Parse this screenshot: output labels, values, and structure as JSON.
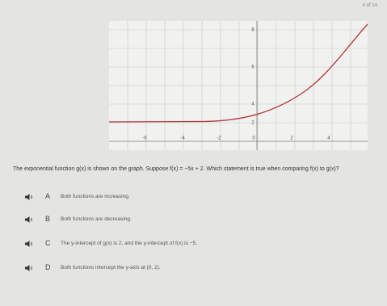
{
  "header": {
    "progress": "4 of 14"
  },
  "graph": {
    "x_labels": [
      "-6",
      "-4",
      "-2",
      "0",
      "2",
      "4"
    ],
    "y_labels": [
      "8",
      "6",
      "4",
      "2"
    ]
  },
  "question": {
    "text": "The exponential function g(x) is shown on the graph. Suppose f(x) = −5x + 2. Which statement is true when comparing f(x) to g(x)?"
  },
  "options": [
    {
      "letter": "A",
      "text": "Both functions are increasing."
    },
    {
      "letter": "B",
      "text": "Both functions are decreasing."
    },
    {
      "letter": "C",
      "text": "The y-intercept of g(x) is 2, and the y-intercept of f(x) is −5."
    },
    {
      "letter": "D",
      "text": "Both functions intercept the y-axis at (0, 2)."
    }
  ]
}
